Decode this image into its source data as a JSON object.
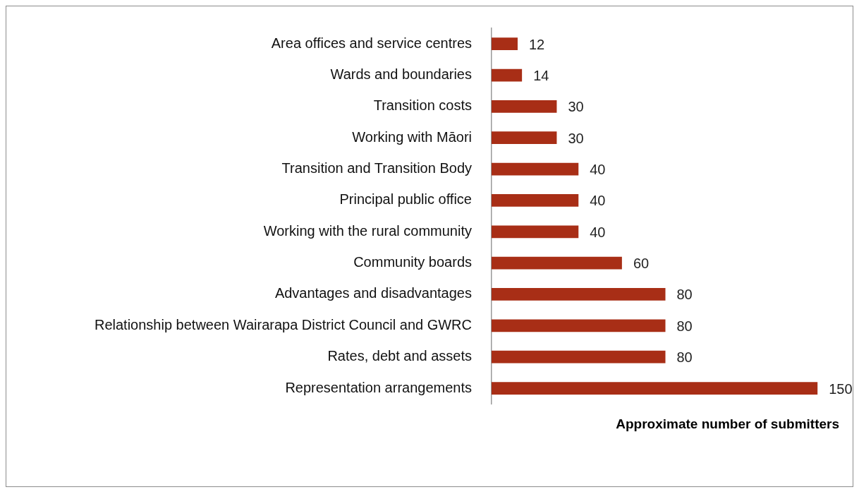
{
  "chart_data": {
    "type": "bar",
    "orientation": "horizontal",
    "xlabel": "Approximate number of submitters",
    "categories": [
      "Area offices and service centres",
      "Wards and boundaries",
      "Transition costs",
      "Working with Māori",
      "Transition and Transition Body",
      "Principal public office",
      "Working with the rural community",
      "Community boards",
      "Advantages and disadvantages",
      "Relationship between Wairarapa District Council and GWRC",
      "Rates, debt and assets",
      "Representation arrangements"
    ],
    "values": [
      12,
      14,
      30,
      30,
      40,
      40,
      40,
      60,
      80,
      80,
      80,
      150
    ],
    "color": "#a82e16",
    "data_labels": true,
    "tick_labels": "y",
    "grid": false,
    "legend": false
  }
}
